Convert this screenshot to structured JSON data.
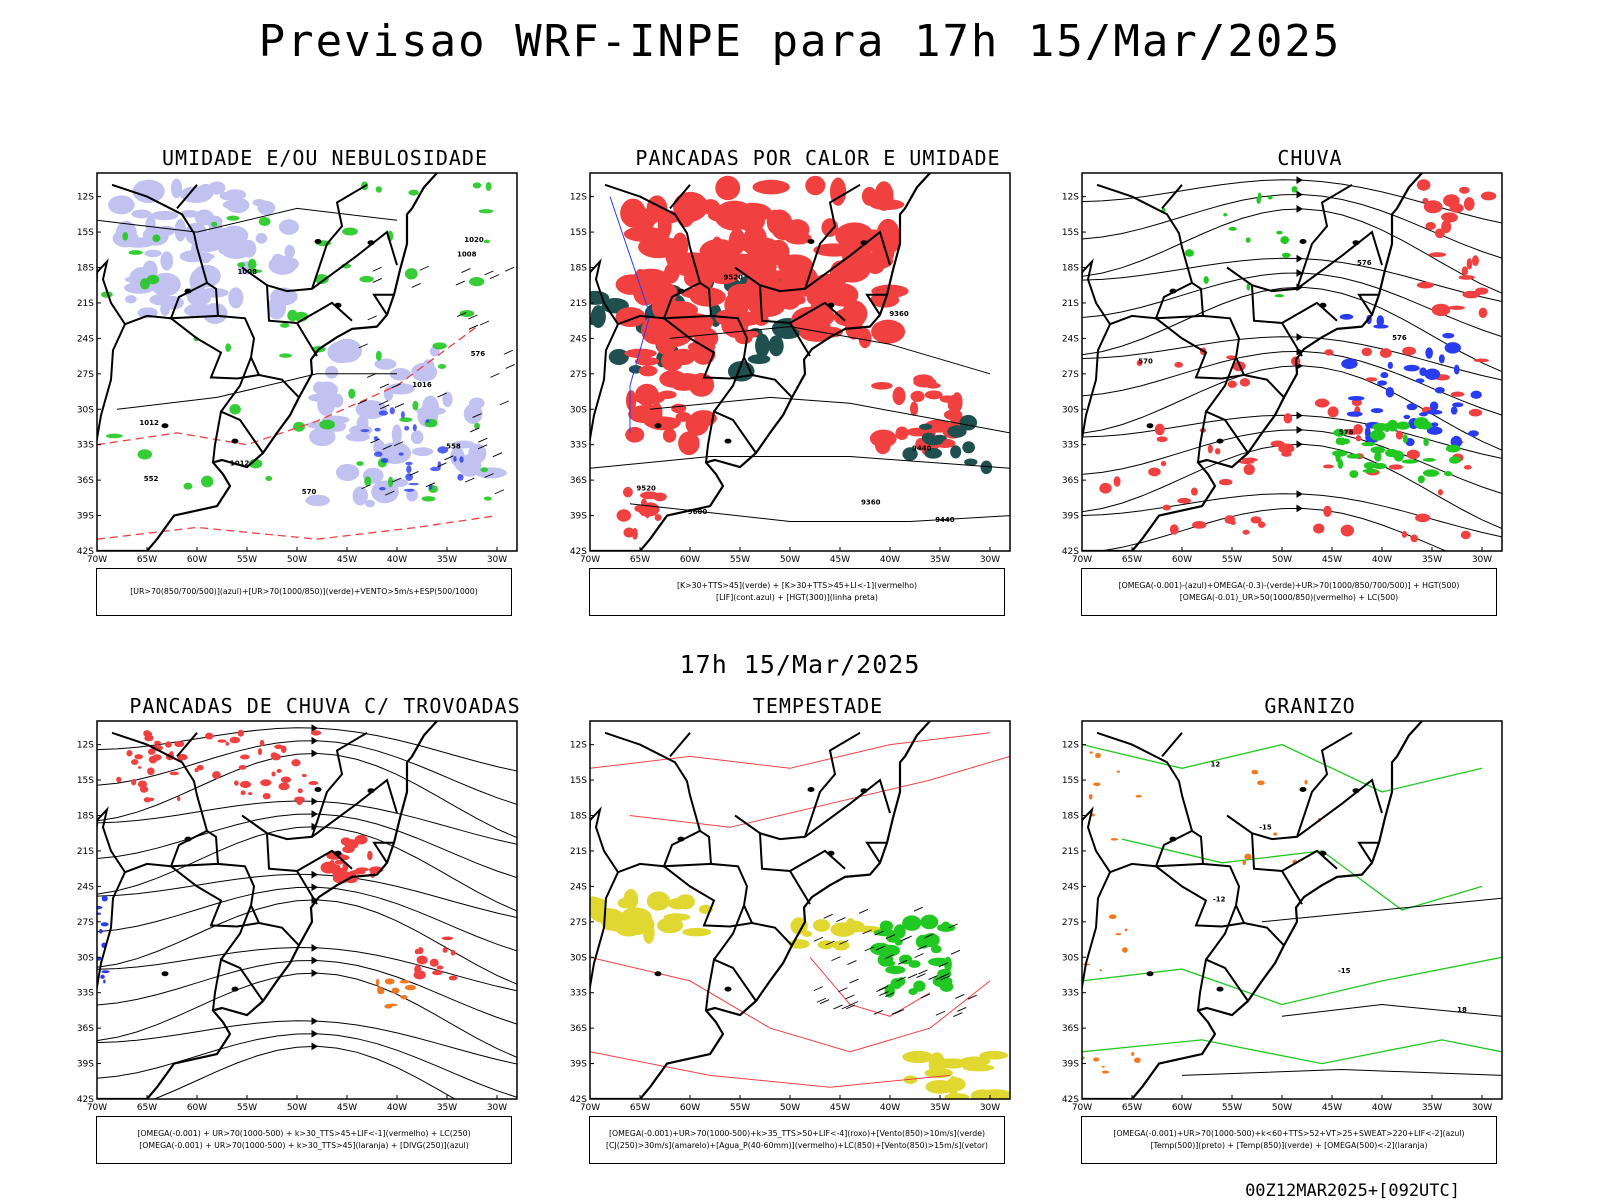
{
  "title": "Previsao WRF-INPE  para 17h 15/Mar/2025",
  "subtitle_time": "17h 15/Mar/2025",
  "footer": "00Z12MAR2025+[092UTC]",
  "lat_labels": [
    "12S",
    "15S",
    "18S",
    "21S",
    "24S",
    "27S",
    "30S",
    "33S",
    "36S",
    "39S",
    "42S"
  ],
  "lon_labels": [
    "70W",
    "65W",
    "60W",
    "55W",
    "50W",
    "45W",
    "40W",
    "35W",
    "30W"
  ],
  "colors": {
    "red": "#f04040",
    "green": "#22c822",
    "blue": "#2a3cf0",
    "lavender": "#b8b8ee",
    "darkteal": "#1f4f4f",
    "yellow": "#e0d830",
    "orange": "#f07820",
    "black": "#000000"
  },
  "panels": [
    {
      "id": "umidade",
      "title": "UMIDADE E/OU NEBULOSIDADE",
      "legend": [
        "[UR>70(850/700/500)](azul)+[UR>70(1000/850)](verde)+VENTO>5m/s+ESP(500/1000)"
      ],
      "contour_labels": [
        "1008",
        "1008",
        "1012",
        "1012",
        "1016",
        "1020",
        "570",
        "576",
        "552",
        "558"
      ]
    },
    {
      "id": "pancadas",
      "title": "PANCADAS POR CALOR E UMIDADE",
      "legend": [
        "[K>30+TTS>45](verde) + [K>30+TTS>45+LI<-1](vermelho)",
        "[LIF](cont.azul) + [HGT(300)](linha preta)"
      ],
      "contour_labels": [
        "9600",
        "9520",
        "9440",
        "9360",
        "9520",
        "9440",
        "9360"
      ]
    },
    {
      "id": "chuva",
      "title": "CHUVA",
      "legend": [
        "[OMEGA(-0.001)-(azul)+OMEGA(-0.3)-(verde)+UR>70(1000/850/700/500)] + HGT(500)",
        "[OMEGA(-0.01)_UR>50(1000/850)(vermelho) + LC(500)"
      ],
      "contour_labels": [
        "576",
        "576",
        "576",
        "570"
      ]
    },
    {
      "id": "trovoadas",
      "title": "PANCADAS DE CHUVA C/ TROVOADAS",
      "legend": [
        "[OMEGA(-0.001) + UR>70(1000-500) + k>30_TTS>45+LIF<-1](vermelho) + LC(250)",
        "[OMEGA(-0.001) + UR>70(1000-500) + k>30_TTS>45](laranja) + [DIVG(250)](azul)"
      ],
      "contour_labels": []
    },
    {
      "id": "tempestade",
      "title": "TEMPESTADE",
      "legend": [
        "[OMEGA(-0.001)+UR>70(1000-500)+k>35_TTS>50+LIF<-4](roxo)+[Vento(850)>10m/s](verde)",
        "[CJ(250)>30m/s](amarelo)+[Agua_P(40-60mm)](vermelho)+LC(850)+[Vento(850)>15m/s](vetor)"
      ],
      "contour_labels": []
    },
    {
      "id": "granizo",
      "title": "GRANIZO",
      "legend": [
        "[OMEGA(-0.001)+UR>70(1000-500)+k<60+TTS>52+VT>25+SWEAT>220+LIF<-2](azul)",
        "[Temp(500)](preto) + [Temp(850)](verde) + [OMEGA(500)<-2](laranja)"
      ],
      "contour_labels": [
        "-12",
        "12",
        "-15",
        "-15",
        "18"
      ]
    }
  ]
}
